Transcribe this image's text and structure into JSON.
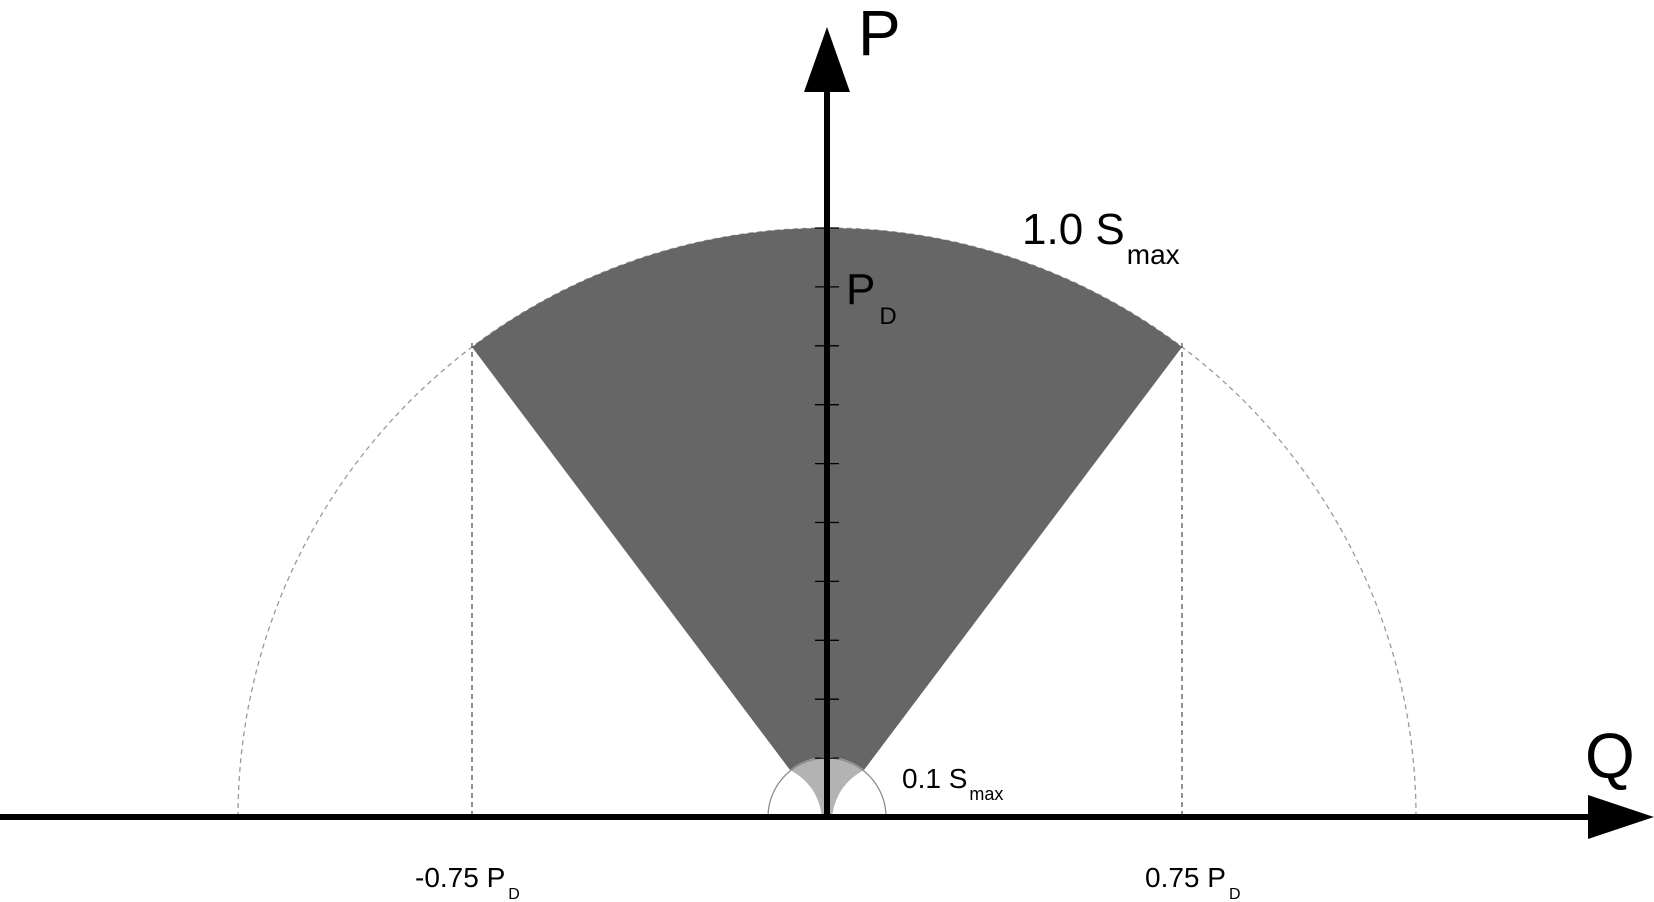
{
  "axes": {
    "vertical_label": "P",
    "horizontal_label": "Q"
  },
  "labels": {
    "outer_arc": {
      "main": "1.0 S",
      "sub": "max"
    },
    "inner_arc": {
      "main": "0.1 S",
      "sub": "max"
    },
    "pd": {
      "main": "P",
      "sub": "D"
    },
    "q_neg": {
      "main": "-0.75 P",
      "sub": "D"
    },
    "q_pos": {
      "main": "0.75 P",
      "sub": "D"
    }
  },
  "colors": {
    "sector": "#666666",
    "inner_region": "#b3b3b3",
    "dashed": "#999999",
    "axis": "#000000"
  }
}
